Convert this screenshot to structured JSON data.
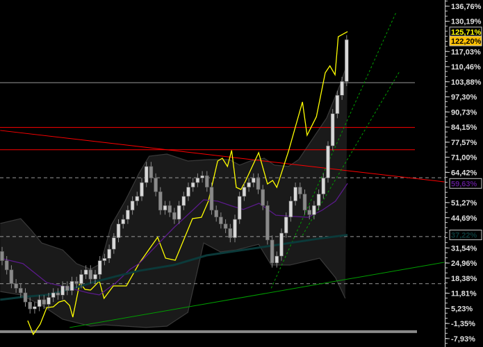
{
  "chart_data": {
    "type": "candlestick",
    "yaxis": {
      "position": "right",
      "unit": "%",
      "ticks": [
        "136,76%",
        "130,19%",
        "117,03%",
        "110,46%",
        "103,88%",
        "97,30%",
        "90,73%",
        "84,15%",
        "77,57%",
        "71,00%",
        "64,42%",
        "51,27%",
        "44,69%",
        "31,54%",
        "24,96%",
        "18,38%",
        "11,81%",
        "5,23%",
        "-1,35%",
        "-7,93%"
      ],
      "tick_values": [
        136.76,
        130.19,
        117.03,
        110.46,
        103.88,
        97.3,
        90.73,
        84.15,
        77.57,
        71.0,
        64.42,
        51.27,
        44.69,
        31.54,
        24.96,
        18.38,
        11.81,
        5.23,
        -1.35,
        -7.93
      ],
      "range": [
        -10.5,
        139
      ]
    },
    "price_labels": [
      {
        "text": "125,71%",
        "value": 125.71,
        "color": "#ffff00",
        "background": "#000000"
      },
      {
        "text": "122,20%",
        "value": 122.2,
        "color": "#000000",
        "background": "#ffc000"
      },
      {
        "text": "59,63%",
        "value": 59.63,
        "color": "#5a1a8a",
        "background": "#000000"
      },
      {
        "text": "37,22%",
        "value": 37.22,
        "color": "#0b3a3a",
        "background": "#000000"
      }
    ],
    "candles": {
      "close": [
        26,
        22,
        16,
        14,
        12,
        8,
        5,
        6,
        9,
        7,
        10,
        12,
        11,
        15,
        13,
        17,
        16,
        20,
        22,
        18,
        20,
        26,
        27,
        31,
        36,
        42,
        44,
        48,
        52,
        54,
        60,
        67,
        62,
        56,
        48,
        50,
        47,
        44,
        50,
        54,
        58,
        60,
        62,
        63,
        58,
        48,
        45,
        42,
        40,
        36,
        44,
        54,
        58,
        60,
        62,
        57,
        50,
        35,
        25,
        28,
        38,
        45,
        52,
        58,
        55,
        48,
        46,
        50,
        55,
        62,
        76,
        90,
        98,
        104,
        122.2
      ],
      "open": [
        30,
        26,
        22,
        16,
        14,
        12,
        8,
        5,
        6,
        9,
        7,
        10,
        12,
        11,
        15,
        13,
        17,
        16,
        20,
        22,
        18,
        20,
        26,
        27,
        31,
        36,
        42,
        44,
        48,
        52,
        54,
        60,
        67,
        62,
        56,
        48,
        50,
        47,
        44,
        50,
        54,
        58,
        60,
        62,
        63,
        58,
        48,
        45,
        42,
        40,
        36,
        44,
        54,
        58,
        60,
        62,
        57,
        50,
        35,
        25,
        28,
        38,
        45,
        52,
        58,
        55,
        48,
        46,
        50,
        55,
        62,
        76,
        90,
        98,
        104
      ]
    },
    "series": [
      {
        "color": "#ffff00",
        "points": [
          [
            5.5,
            -0.1
          ],
          [
            6.7,
            -6.1
          ],
          [
            8.2,
            -1.6
          ],
          [
            9.6,
            5.6
          ],
          [
            11.0,
            5.9
          ],
          [
            12.2,
            8.0
          ],
          [
            13.4,
            8.7
          ],
          [
            14.5,
            6.5
          ],
          [
            15.2,
            1.4
          ],
          [
            16.7,
            16.5
          ],
          [
            17.8,
            13.5
          ],
          [
            19.0,
            13.2
          ],
          [
            20.9,
            17.1
          ],
          [
            21.9,
            9.6
          ],
          [
            23.9,
            15.0
          ],
          [
            26.7,
            15.0
          ],
          [
            29.4,
            24.7
          ],
          [
            33.4,
            36.2
          ],
          [
            35.1,
            27.1
          ],
          [
            37.2,
            26.2
          ],
          [
            40.9,
            44.3
          ],
          [
            42.8,
            44.9
          ],
          [
            44.3,
            51.9
          ],
          [
            46.3,
            69.4
          ],
          [
            47.3,
            70.6
          ],
          [
            48.4,
            67.0
          ],
          [
            49.3,
            74.0
          ],
          [
            50.3,
            57.9
          ],
          [
            51.3,
            57.0
          ],
          [
            52.2,
            60.3
          ],
          [
            55.1,
            73.0
          ],
          [
            57.0,
            59.4
          ],
          [
            58.1,
            60.9
          ],
          [
            59.0,
            57.9
          ],
          [
            61.5,
            73.6
          ],
          [
            64.5,
            95.1
          ],
          [
            65.5,
            80.6
          ],
          [
            67.5,
            88.7
          ],
          [
            69.4,
            107.8
          ],
          [
            70.4,
            110.8
          ],
          [
            71.5,
            106.9
          ],
          [
            72.2,
            123.5
          ],
          [
            74.2,
            125.71
          ]
        ]
      },
      {
        "color": "#5a1a8a",
        "points": [
          [
            -0.4,
            27.1
          ],
          [
            4.5,
            24.7
          ],
          [
            9.6,
            16.5
          ],
          [
            14.5,
            14.1
          ],
          [
            18.5,
            12.0
          ],
          [
            20.9,
            11.1
          ],
          [
            24.5,
            16.5
          ],
          [
            27.5,
            22.3
          ],
          [
            29.4,
            24.7
          ],
          [
            36.9,
            40.4
          ],
          [
            40.9,
            47.9
          ],
          [
            43.3,
            52.5
          ],
          [
            46.3,
            51.9
          ],
          [
            49.3,
            49.8
          ],
          [
            51.8,
            48.3
          ],
          [
            55.2,
            51.0
          ],
          [
            58.8,
            45.8
          ],
          [
            65.7,
            44.9
          ],
          [
            68.7,
            47.9
          ],
          [
            71.6,
            51.9
          ],
          [
            74.2,
            59.63
          ]
        ]
      },
      {
        "color": "#0b3a3a",
        "points": [
          [
            -0.4,
            9.0
          ],
          [
            4.5,
            10.2
          ],
          [
            9.6,
            11.1
          ],
          [
            14.5,
            13.5
          ],
          [
            19.4,
            16.5
          ],
          [
            24.5,
            19.2
          ],
          [
            29.4,
            21.6
          ],
          [
            36.9,
            24.1
          ],
          [
            43.9,
            28.3
          ],
          [
            51.8,
            30.7
          ],
          [
            58.8,
            32.8
          ],
          [
            68.7,
            35.8
          ],
          [
            74.2,
            37.22
          ]
        ]
      }
    ],
    "bands": {
      "upper": [
        [
          -0.4,
          42.2
        ],
        [
          4.0,
          44.3
        ],
        [
          6.3,
          39.2
        ],
        [
          8.5,
          33.7
        ],
        [
          13.0,
          30.7
        ],
        [
          16.0,
          24.7
        ],
        [
          19.0,
          22.3
        ],
        [
          21.2,
          24.7
        ],
        [
          23.4,
          41.3
        ],
        [
          26.4,
          51.9
        ],
        [
          29.4,
          64.0
        ],
        [
          31.6,
          71.5
        ],
        [
          35.4,
          72.4
        ],
        [
          39.9,
          69.4
        ],
        [
          44.3,
          70.0
        ],
        [
          48.8,
          70.0
        ],
        [
          51.0,
          67.6
        ],
        [
          53.3,
          69.4
        ],
        [
          56.3,
          70.6
        ],
        [
          58.5,
          67.6
        ],
        [
          61.5,
          67.0
        ],
        [
          63.7,
          70.0
        ],
        [
          66.7,
          79.1
        ],
        [
          69.7,
          88.1
        ],
        [
          72.7,
          103.2
        ],
        [
          74.2,
          112.3
        ]
      ],
      "lower": [
        [
          -0.4,
          12.6
        ],
        [
          4.0,
          11.1
        ],
        [
          8.5,
          6.6
        ],
        [
          13.0,
          0.5
        ],
        [
          16.0,
          -1.0
        ],
        [
          19.0,
          -2.5
        ],
        [
          21.9,
          -1.9
        ],
        [
          26.4,
          -2.5
        ],
        [
          30.9,
          -3.1
        ],
        [
          35.4,
          -2.5
        ],
        [
          39.9,
          3.5
        ],
        [
          43.3,
          33.7
        ],
        [
          46.9,
          29.8
        ],
        [
          50.3,
          30.7
        ],
        [
          55.1,
          33.1
        ],
        [
          57.8,
          24.1
        ],
        [
          61.8,
          24.1
        ],
        [
          68.2,
          27.1
        ],
        [
          71.6,
          18.6
        ],
        [
          73.7,
          9.6
        ]
      ]
    },
    "horizontal_lines": [
      {
        "value": 103.5,
        "color": "#9a9a9a",
        "style": "solid"
      },
      {
        "value": 84.0,
        "color": "#ff0000",
        "style": "solid"
      },
      {
        "value": 74.3,
        "color": "#ff0000",
        "style": "solid"
      },
      {
        "value": 62.1,
        "color": "#9a9a9a",
        "style": "dashed"
      },
      {
        "value": 36.5,
        "color": "#9a9a9a",
        "style": "dashed"
      },
      {
        "value": 16.0,
        "color": "#9a9a9a",
        "style": "dashed"
      },
      {
        "value": -4.9,
        "color": "#8a8a8a",
        "style": "thick"
      }
    ],
    "trend_lines": [
      {
        "from": [
          -0.4,
          82.7
        ],
        "to": [
          95,
          60.3
        ],
        "color": "#ff0000",
        "style": "solid"
      },
      {
        "from": [
          14.5,
          -3.1
        ],
        "to": [
          95,
          25.3
        ],
        "color": "#00a000",
        "style": "solid"
      },
      {
        "from": [
          57.8,
          14.0
        ],
        "to": [
          84.6,
          134.0
        ],
        "color": "#00a000",
        "style": "dashed"
      },
      {
        "from": [
          64.5,
          37.0
        ],
        "to": [
          85.4,
          108.5
        ],
        "color": "#00a000",
        "style": "dashed"
      }
    ]
  }
}
